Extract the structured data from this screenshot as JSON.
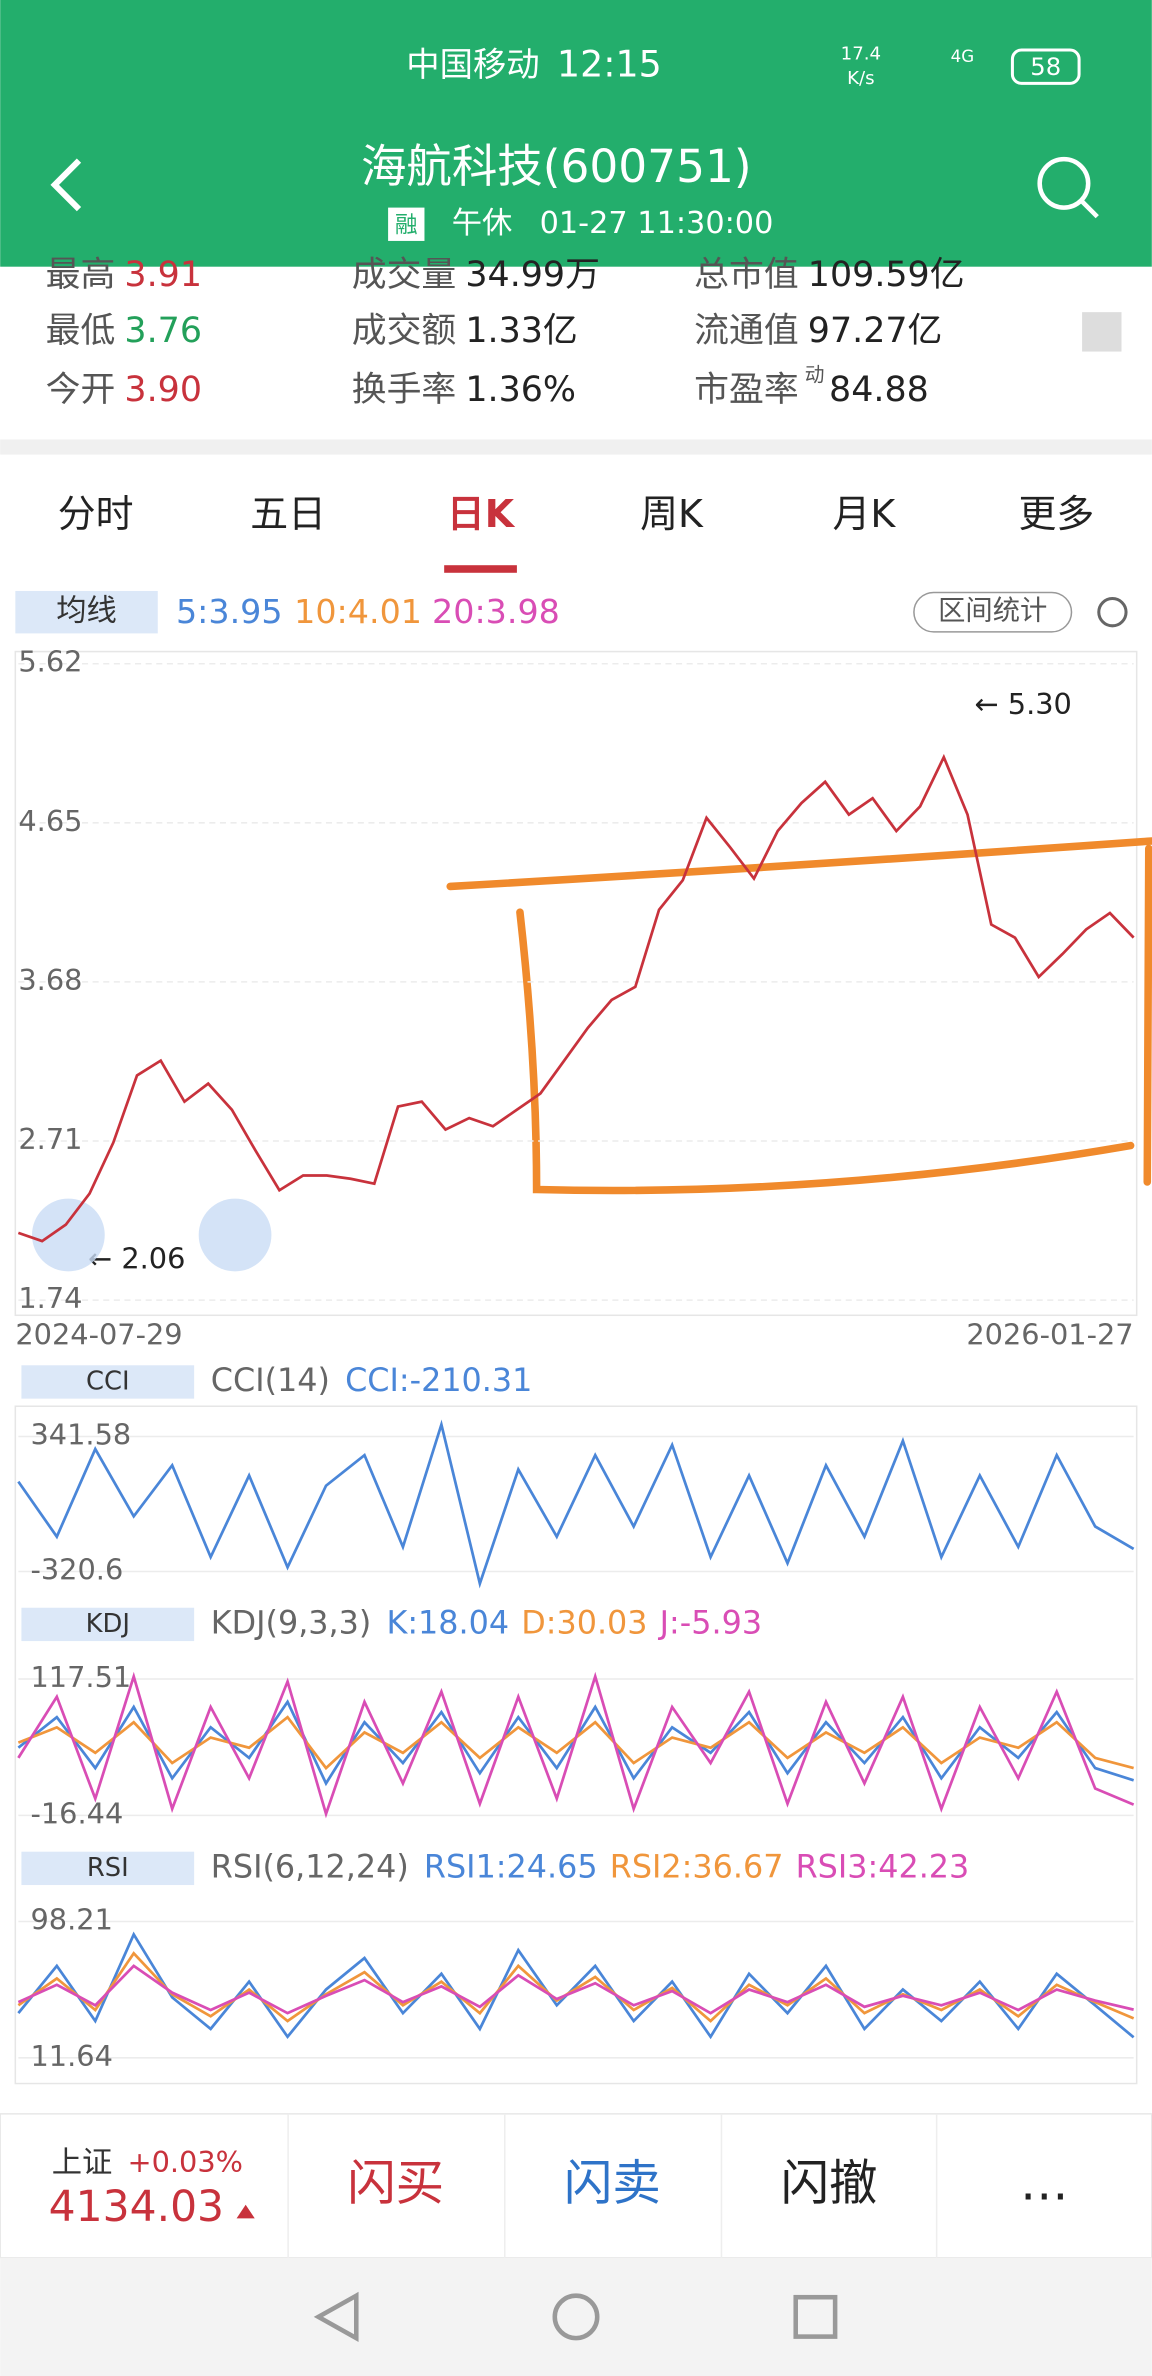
{
  "status_bar": {
    "carrier": "中国移动",
    "time": "12:15",
    "speed": "17.4",
    "speed_unit": "K/s",
    "network": "4G",
    "battery": "58"
  },
  "header": {
    "title": "海航科技(600751)",
    "badge": "融",
    "status": "午休",
    "datetime": "01-27 11:30:00"
  },
  "quote": {
    "rows": [
      [
        {
          "label": "最高",
          "value": "3.91"
        },
        {
          "label": "成交量",
          "value": "34.99万"
        },
        {
          "label": "总市值",
          "value": "109.59亿"
        }
      ],
      [
        {
          "label": "最低",
          "value": "3.76"
        },
        {
          "label": "成交额",
          "value": "1.33亿"
        },
        {
          "label": "流通值",
          "value": "97.27亿"
        }
      ],
      [
        {
          "label": "今开",
          "value": "3.90"
        },
        {
          "label": "换手率",
          "value": "1.36%"
        },
        {
          "label": "市盈率",
          "sup": "动",
          "value": "84.88"
        }
      ]
    ]
  },
  "tabs": [
    "分时",
    "五日",
    "日K",
    "周K",
    "月K",
    "更多"
  ],
  "ma_legend": {
    "label": "均线",
    "items": [
      "5:3.95",
      "10:4.01",
      "20:3.98"
    ],
    "button": "区间统计"
  },
  "chart_data": [
    {
      "type": "line",
      "color": "#c8323c",
      "ylim": [
        1.74,
        5.62
      ],
      "yticks": [
        5.62,
        4.65,
        3.68,
        2.71,
        1.74
      ],
      "grid": true,
      "annotations": [
        "← 5.30",
        "← 2.06"
      ],
      "categories": [
        "2024-07-29",
        null,
        null,
        null,
        null,
        null,
        null,
        null,
        null,
        null,
        null,
        null,
        null,
        null,
        null,
        null,
        null,
        null,
        null,
        null,
        null,
        null,
        null,
        null,
        null,
        null,
        null,
        null,
        null,
        null,
        null,
        null,
        null,
        null,
        null,
        null,
        null,
        null,
        null,
        null,
        null,
        null,
        null,
        null,
        null,
        null,
        null,
        "2026-01-27"
      ],
      "values": [
        2.15,
        2.1,
        2.2,
        2.39,
        2.7,
        3.11,
        3.2,
        2.95,
        3.06,
        2.9,
        2.65,
        2.41,
        2.5,
        2.5,
        2.48,
        2.45,
        2.92,
        2.95,
        2.78,
        2.85,
        2.8,
        2.9,
        3.0,
        3.2,
        3.4,
        3.57,
        3.65,
        4.12,
        4.3,
        4.68,
        4.5,
        4.31,
        4.6,
        4.77,
        4.9,
        4.7,
        4.8,
        4.6,
        4.75,
        5.05,
        4.7,
        4.03,
        3.95,
        3.71,
        3.85,
        4.0,
        4.1,
        3.95
      ]
    },
    {
      "type": "line",
      "label": "CCI",
      "params": "CCI(14)",
      "ylim": [
        -454,
        490
      ],
      "yticks": [
        341.58,
        -320.6
      ],
      "series": [
        {
          "name": "CCI:-210.31",
          "color": "#4a86d8",
          "values": [
            120,
            -150,
            280,
            -50,
            200,
            -250,
            150,
            -300,
            100,
            250,
            -200,
            400,
            -380,
            180,
            -150,
            250,
            -100,
            300,
            -250,
            150,
            -280,
            200,
            -150,
            320,
            -250,
            150,
            -200,
            250,
            -100,
            -210.31
          ]
        }
      ]
    },
    {
      "type": "line",
      "label": "KDJ",
      "params": "KDJ(9,3,3)",
      "ylim": [
        -41.7,
        147.3
      ],
      "yticks": [
        117.51,
        -16.44
      ],
      "series": [
        {
          "name": "K:18.04",
          "color": "#4a86d8",
          "values": [
            50,
            80,
            30,
            90,
            20,
            70,
            40,
            95,
            15,
            75,
            35,
            85,
            25,
            80,
            30,
            90,
            20,
            70,
            45,
            85,
            25,
            75,
            35,
            80,
            20,
            70,
            40,
            85,
            30,
            18.04
          ]
        },
        {
          "name": "D:30.03",
          "color": "#f0963c",
          "values": [
            55,
            70,
            45,
            75,
            35,
            60,
            50,
            80,
            30,
            65,
            45,
            75,
            40,
            70,
            45,
            75,
            35,
            60,
            50,
            75,
            40,
            65,
            45,
            70,
            35,
            60,
            50,
            75,
            40,
            30.03
          ]
        },
        {
          "name": "J:-5.93",
          "color": "#d94db5",
          "values": [
            40,
            100,
            0,
            120,
            -10,
            90,
            20,
            115,
            -15,
            95,
            15,
            105,
            -5,
            100,
            0,
            120,
            -10,
            90,
            35,
            105,
            -5,
            95,
            15,
            100,
            -10,
            90,
            20,
            105,
            10,
            -5.93
          ]
        }
      ]
    },
    {
      "type": "line",
      "label": "RSI",
      "params": "RSI(6,12,24)",
      "ylim": [
        -4.7,
        117.5
      ],
      "yticks": [
        98.21,
        11.64
      ],
      "series": [
        {
          "name": "RSI1:24.65",
          "color": "#4a86d8",
          "values": [
            40,
            70,
            35,
            90,
            50,
            30,
            60,
            25,
            55,
            75,
            40,
            65,
            30,
            80,
            45,
            70,
            35,
            60,
            25,
            65,
            40,
            70,
            30,
            55,
            35,
            60,
            30,
            65,
            45,
            24.65
          ]
        },
        {
          "name": "RSI2:36.67",
          "color": "#f0963c",
          "values": [
            45,
            62,
            42,
            78,
            52,
            38,
            55,
            35,
            52,
            66,
            45,
            60,
            40,
            70,
            48,
            63,
            42,
            56,
            35,
            58,
            45,
            62,
            40,
            52,
            42,
            55,
            38,
            58,
            47,
            36.67
          ]
        },
        {
          "name": "RSI3:42.23",
          "color": "#d94db5",
          "values": [
            47,
            58,
            45,
            70,
            53,
            42,
            53,
            40,
            51,
            61,
            47,
            57,
            44,
            64,
            49,
            59,
            45,
            54,
            40,
            55,
            47,
            58,
            44,
            51,
            45,
            53,
            42,
            55,
            48,
            42.23
          ]
        }
      ]
    }
  ],
  "bottom_bar": {
    "index_name": "上证",
    "index_change": "+0.03%",
    "index_value": "4134.03",
    "buttons": [
      "闪买",
      "闪卖",
      "闪撤",
      "…"
    ]
  }
}
